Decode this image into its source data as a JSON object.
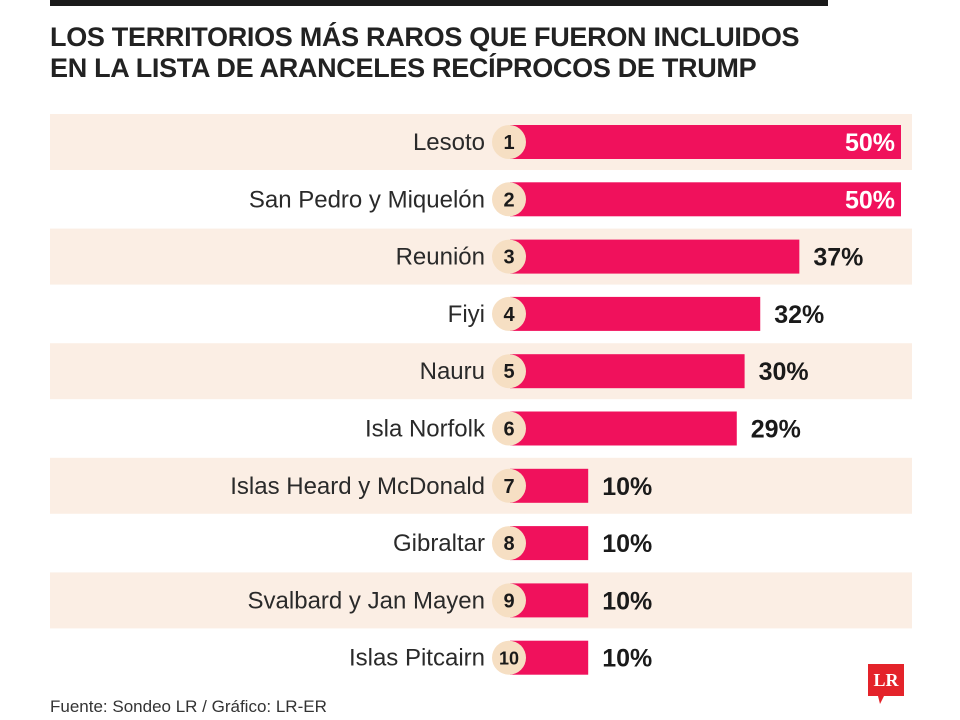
{
  "header": {
    "title_line1": "LOS TERRITORIOS MÁS RAROS QUE FUERON INCLUIDOS",
    "title_line2": "EN LA LISTA DE ARANCELES RECÍPROCOS DE TRUMP"
  },
  "footer": {
    "source": "Fuente: Sondeo LR / Gráfico: LR-ER",
    "logo_text": "LR"
  },
  "colors": {
    "bar": "#f0115c",
    "stripe": "#fbeee4",
    "badge": "#f6dfc3",
    "logo": "#e4232a"
  },
  "chart_data": {
    "type": "bar",
    "orientation": "horizontal",
    "categories": [
      "Lesoto",
      "San Pedro y Miquelón",
      "Reunión",
      "Fiyi",
      "Nauru",
      "Isla Norfolk",
      "Islas Heard y McDonald",
      "Gibraltar",
      "Svalbard y Jan Mayen",
      "Islas Pitcairn"
    ],
    "ranks": [
      "1",
      "2",
      "3",
      "4",
      "5",
      "6",
      "7",
      "8",
      "9",
      "10"
    ],
    "values": [
      50,
      50,
      37,
      32,
      30,
      29,
      10,
      10,
      10,
      10
    ],
    "value_labels": [
      "50%",
      "50%",
      "37%",
      "32%",
      "30%",
      "29%",
      "10%",
      "10%",
      "10%",
      "10%"
    ],
    "unit": "%",
    "xlim": [
      0,
      50
    ],
    "grid": false,
    "legend": "none"
  }
}
